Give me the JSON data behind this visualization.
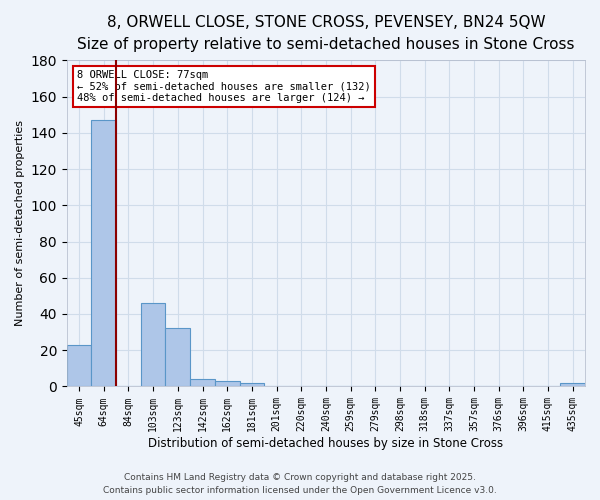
{
  "title": "8, ORWELL CLOSE, STONE CROSS, PEVENSEY, BN24 5QW",
  "subtitle": "Size of property relative to semi-detached houses in Stone Cross",
  "xlabel": "Distribution of semi-detached houses by size in Stone Cross",
  "ylabel": "Number of semi-detached properties",
  "bin_labels": [
    "45sqm",
    "64sqm",
    "84sqm",
    "103sqm",
    "123sqm",
    "142sqm",
    "162sqm",
    "181sqm",
    "201sqm",
    "220sqm",
    "240sqm",
    "259sqm",
    "279sqm",
    "298sqm",
    "318sqm",
    "337sqm",
    "357sqm",
    "376sqm",
    "396sqm",
    "415sqm",
    "435sqm"
  ],
  "bar_values": [
    23,
    147,
    0,
    46,
    32,
    4,
    3,
    2,
    0,
    0,
    0,
    0,
    0,
    0,
    0,
    0,
    0,
    0,
    0,
    0,
    2
  ],
  "bar_color": "#aec6e8",
  "bar_edge_color": "#5a96c8",
  "bg_color": "#eef3fa",
  "grid_color": "#d0dcea",
  "vline_color": "#8b0000",
  "annotation_text": "8 ORWELL CLOSE: 77sqm\n← 52% of semi-detached houses are smaller (132)\n48% of semi-detached houses are larger (124) →",
  "annotation_box_color": "#ffffff",
  "annotation_box_edge": "#cc0000",
  "footer_line1": "Contains HM Land Registry data © Crown copyright and database right 2025.",
  "footer_line2": "Contains public sector information licensed under the Open Government Licence v3.0.",
  "ylim": [
    0,
    180
  ],
  "title_fontsize": 11,
  "subtitle_fontsize": 9
}
